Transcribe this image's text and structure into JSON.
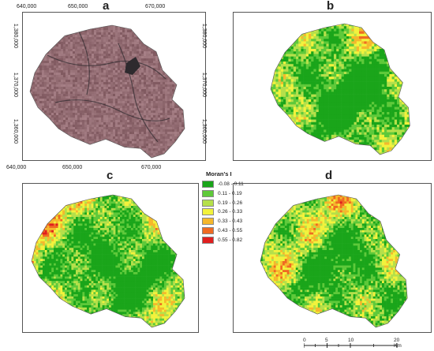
{
  "panels": [
    {
      "id": "a",
      "label": "a"
    },
    {
      "id": "b",
      "label": "b"
    },
    {
      "id": "c",
      "label": "c"
    },
    {
      "id": "d",
      "label": "d"
    }
  ],
  "axes": {
    "x_top": [
      "640,000",
      "650,000",
      "670,000"
    ],
    "x_bottom": [
      "640,000",
      "650,000",
      "670,000"
    ],
    "y_left": [
      "1,380,000",
      "1,370,000",
      "1,360,000"
    ],
    "y_right": [
      "1,380,000",
      "1,370,000",
      "1,360,000"
    ]
  },
  "legend": {
    "title": "Moran's I",
    "classes": [
      {
        "label": "-0.08 - 0.11",
        "color": "#1aa51a"
      },
      {
        "label": "0.11 - 0.19",
        "color": "#5ec93a"
      },
      {
        "label": "0.19 - 0.26",
        "color": "#b5e04a"
      },
      {
        "label": "0.26 - 0.33",
        "color": "#f2f23c"
      },
      {
        "label": "0.33 - 0.43",
        "color": "#f5b82c"
      },
      {
        "label": "0.43 - 0.55",
        "color": "#ef6a22"
      },
      {
        "label": "0.55 - 0.82",
        "color": "#e01e1e"
      }
    ]
  },
  "scale_bar": {
    "ticks": [
      "0",
      "5",
      "10",
      "20 Km"
    ]
  },
  "colors": {
    "imagery_base": "#8a6a6e",
    "imagery_dark": "#2e2a2e"
  }
}
